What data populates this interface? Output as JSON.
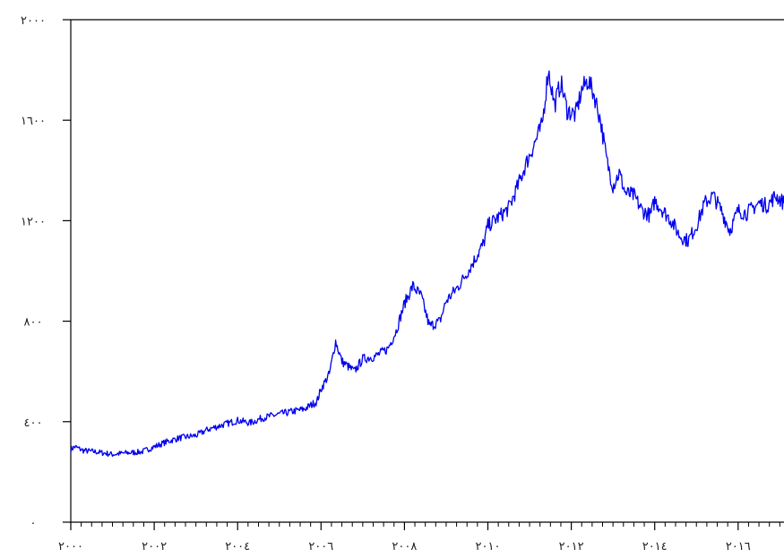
{
  "chart_data": {
    "type": "line",
    "title": "",
    "xlabel": "",
    "ylabel": "",
    "xlim": [
      2000,
      2017.1
    ],
    "ylim": [
      0,
      2000
    ],
    "x_ticks": [
      {
        "value": 2000,
        "label": "٢٠٠٠"
      },
      {
        "value": 2002,
        "label": "٢٠٠٢"
      },
      {
        "value": 2004,
        "label": "٢٠٠٤"
      },
      {
        "value": 2006,
        "label": "٢٠٠٦"
      },
      {
        "value": 2008,
        "label": "٢٠٠٨"
      },
      {
        "value": 2010,
        "label": "٢٠١٠"
      },
      {
        "value": 2012,
        "label": "٢٠١٢"
      },
      {
        "value": 2014,
        "label": "٢٠١٤"
      },
      {
        "value": 2016,
        "label": "٢٠١٦"
      }
    ],
    "y_ticks": [
      {
        "value": 0,
        "label": "٠"
      },
      {
        "value": 400,
        "label": "٤٠٠"
      },
      {
        "value": 800,
        "label": "٨٠٠"
      },
      {
        "value": 1200,
        "label": "١٢٠٠"
      },
      {
        "value": 1600,
        "label": "١٦٠٠"
      },
      {
        "value": 2000,
        "label": "٢٠٠٠"
      }
    ],
    "grid": false,
    "series": [
      {
        "color": "#0000ee",
        "x": [
          2000.0,
          2000.1,
          2000.3,
          2000.6,
          2001.0,
          2001.3,
          2001.7,
          2002.0,
          2002.3,
          2002.6,
          2003.0,
          2003.3,
          2003.6,
          2004.0,
          2004.3,
          2004.6,
          2005.0,
          2005.3,
          2005.6,
          2005.9,
          2006.0,
          2006.2,
          2006.35,
          2006.5,
          2006.8,
          2007.0,
          2007.3,
          2007.6,
          2007.8,
          2008.0,
          2008.2,
          2008.4,
          2008.6,
          2008.85,
          2009.0,
          2009.3,
          2009.6,
          2009.9,
          2010.0,
          2010.3,
          2010.5,
          2010.7,
          2010.9,
          2011.1,
          2011.3,
          2011.45,
          2011.6,
          2011.75,
          2011.9,
          2012.1,
          2012.25,
          2012.4,
          2012.55,
          2012.7,
          2012.85,
          2013.0,
          2013.15,
          2013.3,
          2013.5,
          2013.7,
          2013.9,
          2014.0,
          2014.2,
          2014.4,
          2014.6,
          2014.8,
          2015.0,
          2015.2,
          2015.4,
          2015.6,
          2015.8,
          2016.0,
          2016.2,
          2016.35,
          2016.5,
          2016.7,
          2016.9,
          2017.1
        ],
        "y": [
          290,
          300,
          285,
          280,
          270,
          275,
          280,
          300,
          320,
          335,
          345,
          370,
          385,
          405,
          395,
          415,
          430,
          440,
          450,
          480,
          530,
          590,
          720,
          640,
          600,
          650,
          660,
          690,
          760,
          870,
          940,
          900,
          780,
          800,
          880,
          940,
          1020,
          1110,
          1180,
          1220,
          1250,
          1330,
          1420,
          1500,
          1580,
          1800,
          1660,
          1750,
          1640,
          1620,
          1720,
          1760,
          1700,
          1600,
          1440,
          1340,
          1390,
          1310,
          1300,
          1240,
          1220,
          1280,
          1240,
          1200,
          1140,
          1120,
          1180,
          1270,
          1300,
          1240,
          1160,
          1240,
          1230,
          1250,
          1270,
          1260,
          1300,
          1270
        ]
      }
    ]
  }
}
